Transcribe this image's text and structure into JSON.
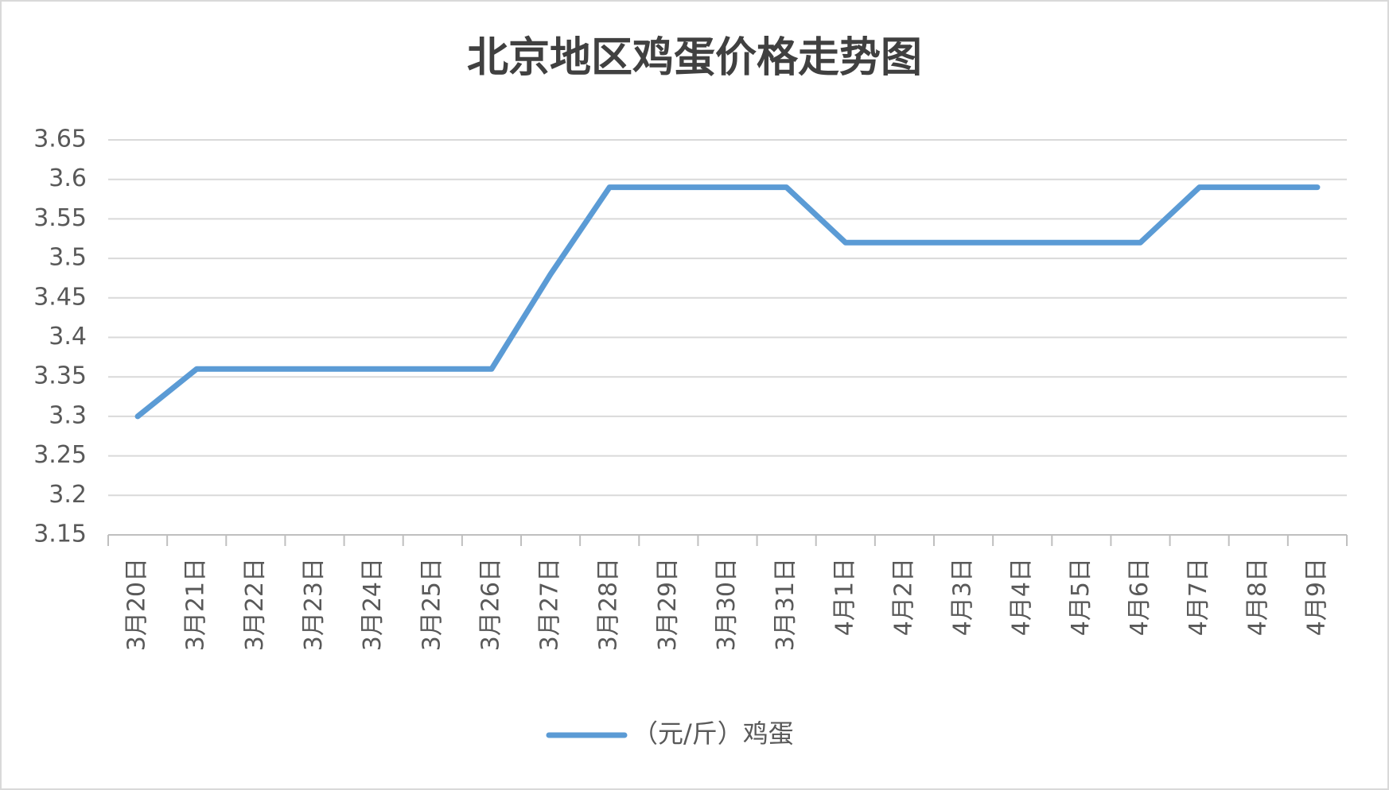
{
  "chart_data": {
    "type": "line",
    "title": "北京地区鸡蛋价格走势图",
    "categories": [
      "3月20日",
      "3月21日",
      "3月22日",
      "3月23日",
      "3月24日",
      "3月25日",
      "3月26日",
      "3月27日",
      "3月28日",
      "3月29日",
      "3月30日",
      "3月31日",
      "4月1日",
      "4月2日",
      "4月3日",
      "4月4日",
      "4月5日",
      "4月6日",
      "4月7日",
      "4月8日",
      "4月9日"
    ],
    "series": [
      {
        "name": "（元/斤）鸡蛋",
        "color": "#5b9bd5",
        "values": [
          3.3,
          3.36,
          3.36,
          3.36,
          3.36,
          3.36,
          3.36,
          3.48,
          3.59,
          3.59,
          3.59,
          3.59,
          3.52,
          3.52,
          3.52,
          3.52,
          3.52,
          3.52,
          3.59,
          3.59,
          3.59
        ]
      }
    ],
    "ylim": [
      3.15,
      3.65
    ],
    "yticks": [
      3.15,
      3.2,
      3.25,
      3.3,
      3.35,
      3.4,
      3.45,
      3.5,
      3.55,
      3.6,
      3.65
    ],
    "grid": true,
    "legend": "bottom"
  }
}
